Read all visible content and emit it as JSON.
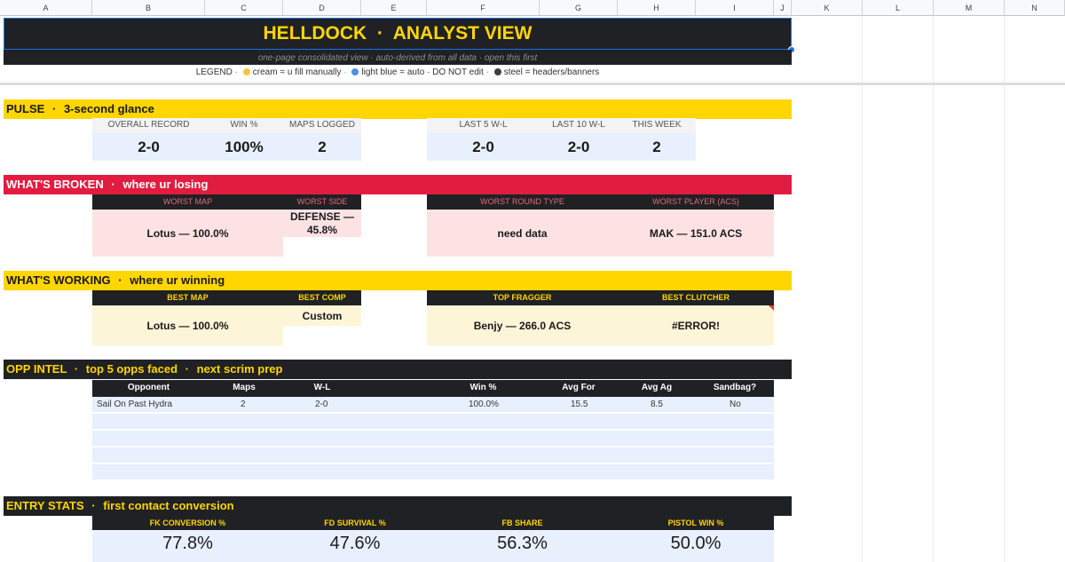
{
  "columns": [
    "A",
    "B",
    "C",
    "D",
    "E",
    "F",
    "G",
    "H",
    "I",
    "J",
    "K",
    "L",
    "M",
    "N"
  ],
  "header": {
    "title": "HELLDOCK  ·  ANALYST VIEW",
    "subtitle": "one-page consolidated view · auto-derived from all data · open this first",
    "legend_label": "LEGEND",
    "legend_items": [
      "cream = u fill manually",
      "light blue = auto · DO NOT edit",
      "steel = headers/banners"
    ],
    "separator": "·"
  },
  "colors": {
    "yellow": "#ffd600",
    "red": "#e21c40",
    "dark": "#202124",
    "blue_fill": "#e8f0fe",
    "cream_fill": "#fdf5d8",
    "pink_fill": "#fde2e4",
    "cream_dot": "#f5c542",
    "blue_dot": "#4a90e2",
    "steel_dot": "#3c3c46"
  },
  "pulse": {
    "banner_title": "PULSE",
    "banner_sub": "3-second glance",
    "labels": [
      "OVERALL RECORD",
      "WIN %",
      "MAPS LOGGED",
      "LAST 5 W-L",
      "LAST 10 W-L",
      "THIS WEEK"
    ],
    "values": [
      "2-0",
      "100%",
      "2",
      "2-0",
      "2-0",
      "2"
    ]
  },
  "broken": {
    "banner_title": "WHAT'S BROKEN",
    "banner_sub": "where ur losing",
    "labels": [
      "WORST MAP",
      "WORST SIDE",
      "WORST ROUND TYPE",
      "WORST PLAYER (ACS)"
    ],
    "values": [
      "Lotus — 100.0%",
      "DEFENSE — 45.8%",
      "need data",
      "MAK — 151.0 ACS"
    ]
  },
  "working": {
    "banner_title": "WHAT'S WORKING",
    "banner_sub": "where ur winning",
    "labels": [
      "BEST MAP",
      "BEST COMP",
      "TOP FRAGGER",
      "BEST CLUTCHER"
    ],
    "values": [
      "Lotus — 100.0%",
      "Custom",
      "Benjy — 266.0 ACS",
      "#ERROR!"
    ]
  },
  "opp": {
    "banner_title": "OPP INTEL",
    "banner_sub": "top 5 opps faced",
    "banner_sub2": "next scrim prep",
    "headers": [
      "Opponent",
      "Maps",
      "W-L",
      "Win %",
      "Avg For",
      "Avg Ag",
      "Sandbag?"
    ],
    "rows": [
      [
        "Sail On Past Hydra",
        "2",
        "2-0",
        "100.0%",
        "15.5",
        "8.5",
        "No"
      ]
    ]
  },
  "entry": {
    "banner_title": "ENTRY STATS",
    "banner_sub": "first contact conversion",
    "labels": [
      "FK CONVERSION %",
      "FD SURVIVAL %",
      "FB SHARE",
      "PISTOL WIN %"
    ],
    "values": [
      "77.8%",
      "47.6%",
      "56.3%",
      "50.0%"
    ]
  }
}
